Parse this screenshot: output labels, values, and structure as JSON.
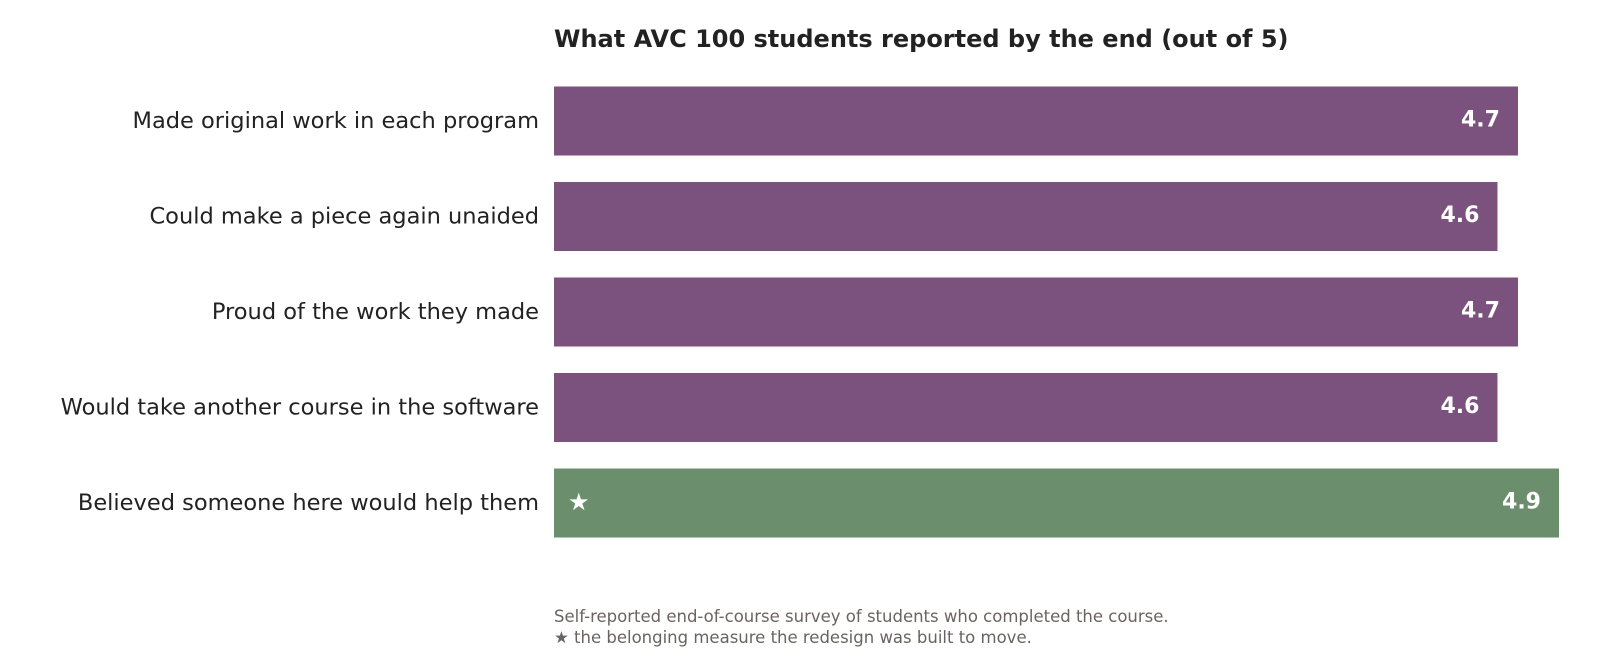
{
  "chart_data": {
    "type": "bar",
    "orientation": "horizontal",
    "title": "What AVC 100 students reported by the end (out of 5)",
    "categories": [
      "Made original work in each program",
      "Could make a piece again unaided",
      "Proud of the work they made",
      "Would take another course in the software",
      "Believed someone here would help them"
    ],
    "values": [
      4.7,
      4.6,
      4.7,
      4.6,
      4.9
    ],
    "value_labels": [
      "4.7",
      "4.6",
      "4.7",
      "4.6",
      "4.9"
    ],
    "xlim": [
      0,
      4.9
    ],
    "grid": false,
    "legend": "none",
    "highlight_index": 4,
    "highlight_marker": "★",
    "colors": {
      "default": "#7b517e",
      "highlight": "#6b8f6d",
      "title": "#222222",
      "label": "#222222",
      "footnote": "#6b6360"
    },
    "footnotes": [
      "Self-reported end-of-course survey of students who completed the course.",
      "★  the belonging measure the redesign was built to move."
    ]
  }
}
